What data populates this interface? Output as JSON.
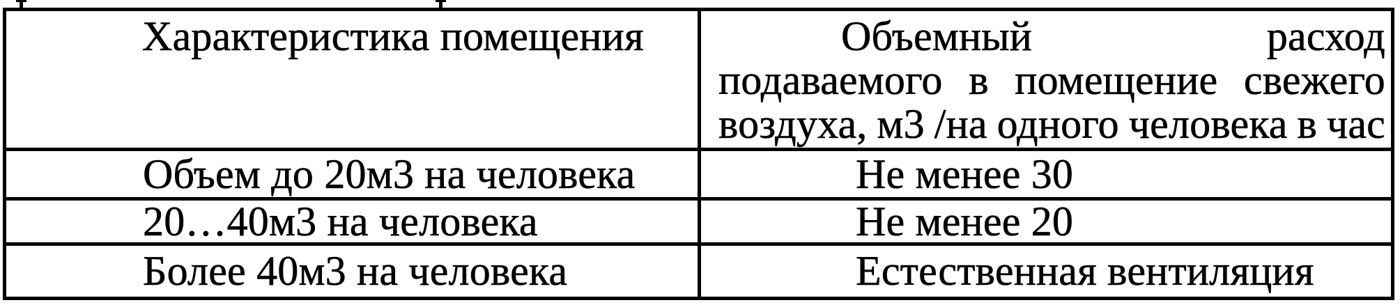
{
  "page": {
    "background_color": "#ffffff",
    "ink_color": "#000000",
    "kind": "scanned document table"
  },
  "table": {
    "header": {
      "col1": "Характеристика помещения",
      "col2_lines": [
        "Объемный расход",
        "подаваемого в помещение свежего",
        "воздуха, м3 /на одного человека в час"
      ]
    },
    "rows": [
      {
        "characteristic": "Объем до 20м3 на человека",
        "value": "Не менее 30"
      },
      {
        "characteristic": "20…40м3 на человека",
        "value": "Не менее 20"
      },
      {
        "characteristic": "Более 40м3 на человека",
        "value": "Естественная вентиляция"
      }
    ]
  }
}
